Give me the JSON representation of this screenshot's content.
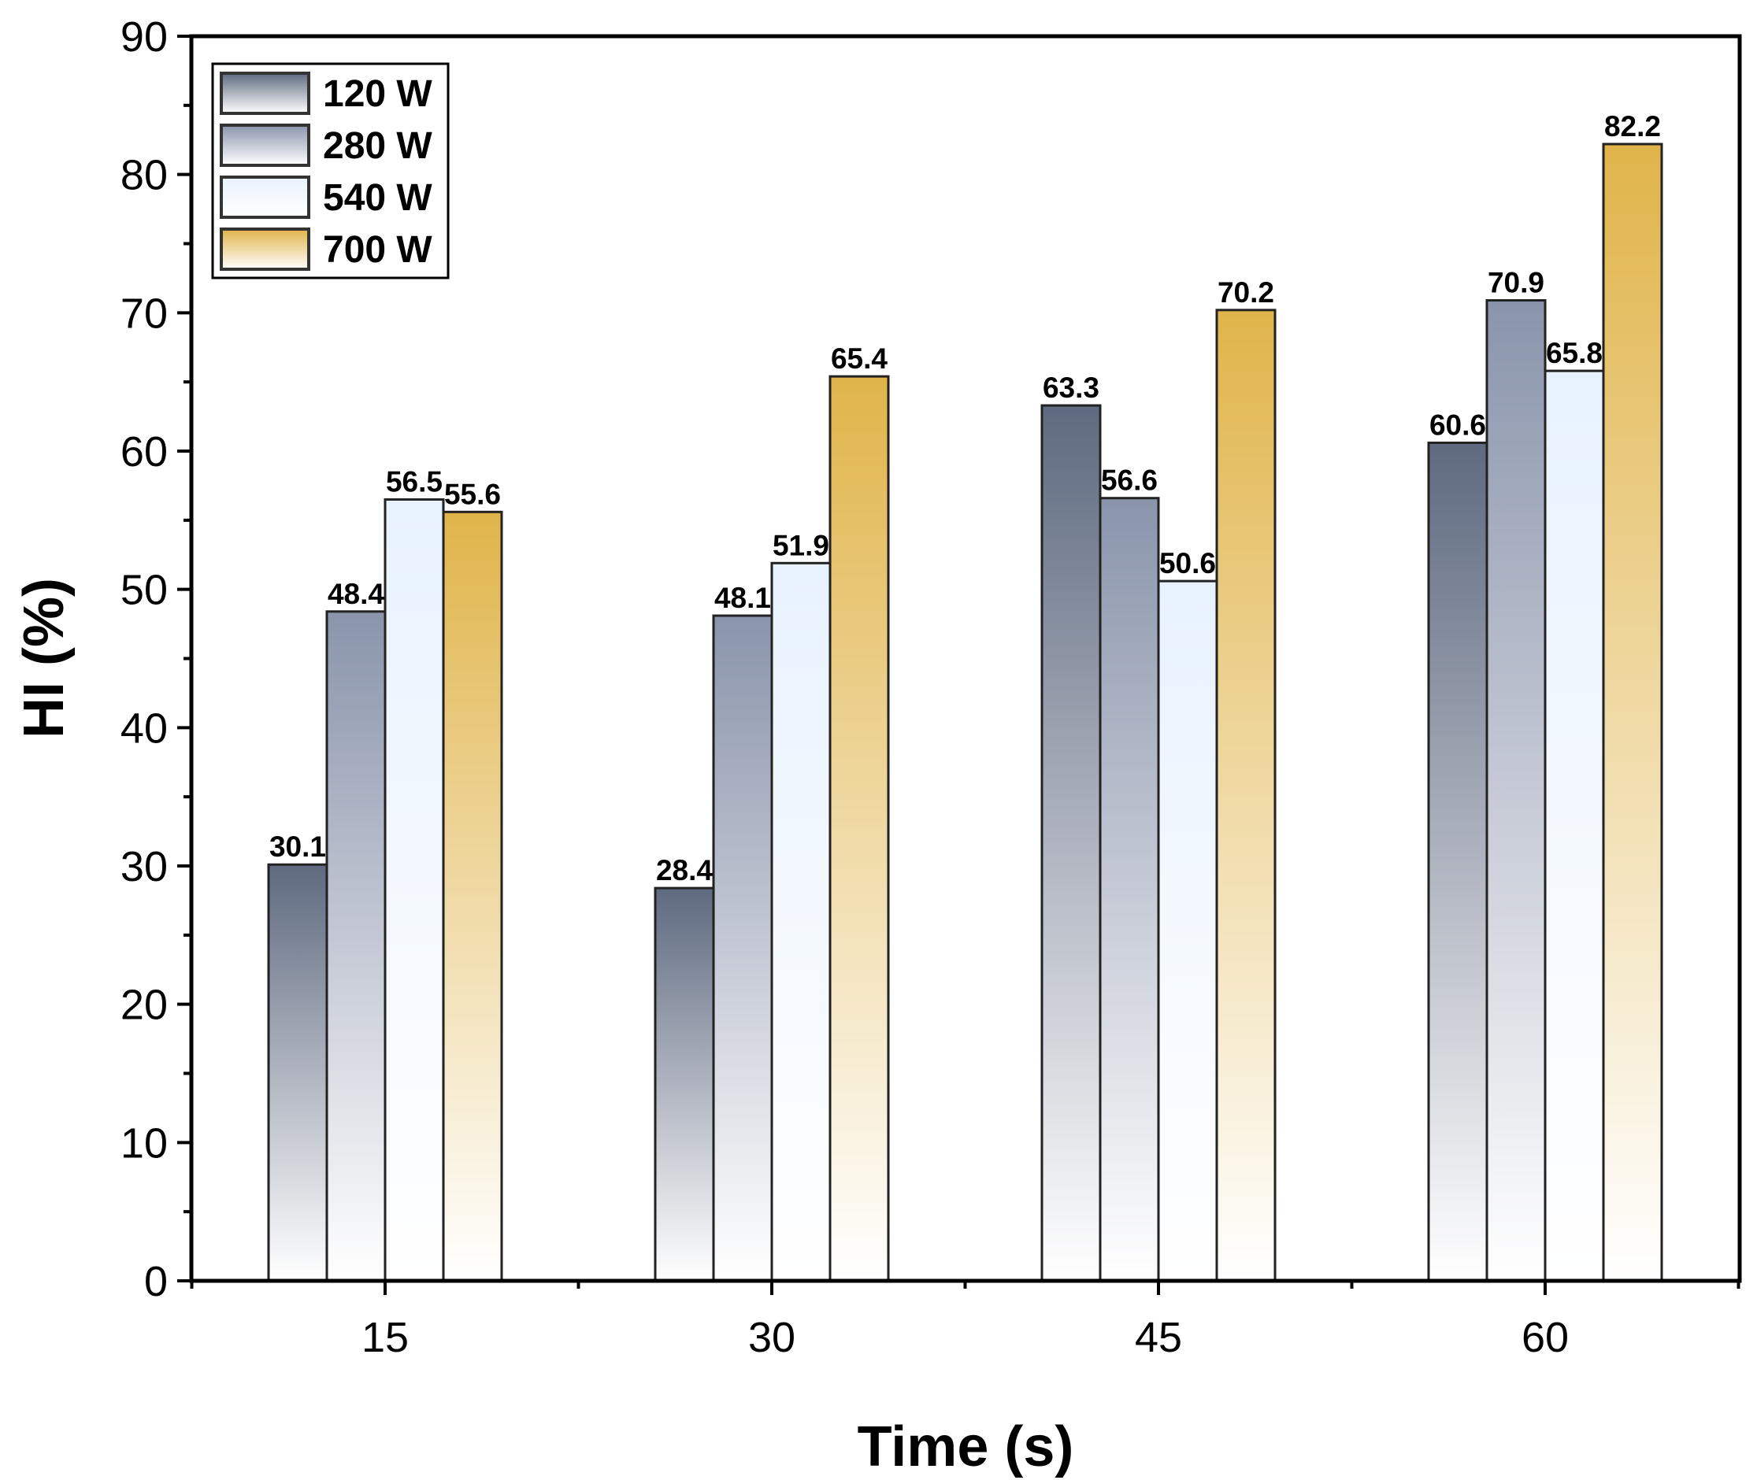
{
  "chart_data": {
    "type": "bar",
    "title": "",
    "xlabel": "Time (s)",
    "ylabel": "HI (%)",
    "categories": [
      "15",
      "30",
      "45",
      "60"
    ],
    "ylim": [
      0,
      90
    ],
    "yticks": [
      "0",
      "10",
      "20",
      "30",
      "40",
      "50",
      "60",
      "70",
      "80",
      "90"
    ],
    "legend_position": "top-left",
    "series": [
      {
        "name": "120 W",
        "values": [
          30.1,
          28.4,
          63.3,
          60.6
        ],
        "labels": [
          "30.1",
          "28.4",
          "63.3",
          "60.6"
        ],
        "color": "#5f6a80"
      },
      {
        "name": "280 W",
        "values": [
          48.4,
          48.1,
          56.6,
          70.9
        ],
        "labels": [
          "48.4",
          "48.1",
          "56.6",
          "70.9"
        ],
        "color": "#8a94ab"
      },
      {
        "name": "540 W",
        "values": [
          56.5,
          51.9,
          50.6,
          65.8
        ],
        "labels": [
          "56.5",
          "51.9",
          "50.6",
          "65.8"
        ],
        "color": "#e8f2fe"
      },
      {
        "name": "700 W",
        "values": [
          55.6,
          65.4,
          70.2,
          82.2
        ],
        "labels": [
          "55.6",
          "65.4",
          "70.2",
          "82.2"
        ],
        "color": "#e0b44a"
      }
    ]
  }
}
